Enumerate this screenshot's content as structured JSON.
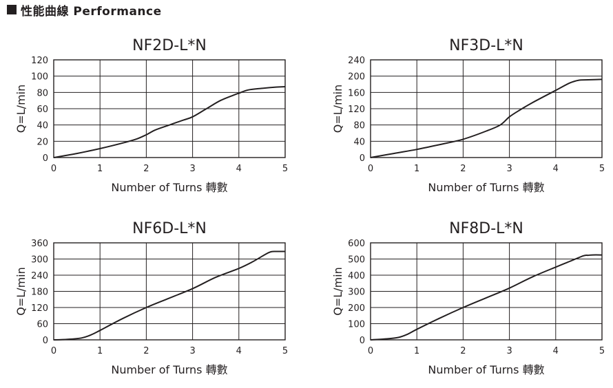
{
  "header": {
    "title": "性能曲線  Performance"
  },
  "chart_data": [
    {
      "type": "line",
      "title": "NF2D-L*N",
      "xlabel": "Number of Turns 轉數",
      "ylabel": "Q=L/min",
      "xlim": [
        0,
        5
      ],
      "ylim": [
        0,
        120
      ],
      "xticks": [
        0,
        1,
        2,
        3,
        4,
        5
      ],
      "yticks": [
        0,
        20,
        40,
        60,
        80,
        100,
        120
      ],
      "grid": true,
      "series": [
        {
          "x": [
            0,
            0.5,
            1,
            1.5,
            1.8,
            2,
            2.2,
            2.5,
            2.8,
            3,
            3.3,
            3.6,
            3.9,
            4,
            4.2,
            4.5,
            4.8,
            5
          ],
          "y": [
            0,
            5,
            11,
            18,
            23,
            28,
            34,
            40,
            46,
            50,
            60,
            70,
            77,
            79,
            83,
            85,
            86.5,
            87
          ]
        }
      ]
    },
    {
      "type": "line",
      "title": "NF3D-L*N",
      "xlabel": "Number of Turns 轉數",
      "ylabel": "Q=L/min",
      "xlim": [
        0,
        5
      ],
      "ylim": [
        0,
        240
      ],
      "xticks": [
        0,
        1,
        2,
        3,
        4,
        5
      ],
      "yticks": [
        0,
        40,
        80,
        120,
        160,
        200,
        240
      ],
      "grid": true,
      "series": [
        {
          "x": [
            0,
            0.5,
            1,
            1.5,
            2,
            2.5,
            2.8,
            3,
            3.2,
            3.5,
            4,
            4.3,
            4.5,
            4.7,
            5
          ],
          "y": [
            0,
            10,
            20,
            32,
            45,
            65,
            80,
            100,
            115,
            135,
            165,
            183,
            190,
            191,
            192
          ]
        }
      ]
    },
    {
      "type": "line",
      "title": "NF6D-L*N",
      "xlabel": "Number of Turns 轉數",
      "ylabel": "Q=L/min",
      "xlim": [
        0,
        5
      ],
      "ylim": [
        0,
        360
      ],
      "xticks": [
        0,
        1,
        2,
        3,
        4,
        5
      ],
      "yticks": [
        0,
        60,
        120,
        180,
        240,
        300,
        360
      ],
      "grid": true,
      "series": [
        {
          "x": [
            0,
            0.3,
            0.6,
            0.8,
            1,
            1.5,
            2,
            2.5,
            3,
            3.5,
            4,
            4.3,
            4.6,
            4.7,
            4.8,
            5
          ],
          "y": [
            0,
            2,
            7,
            18,
            35,
            80,
            120,
            155,
            190,
            232,
            265,
            290,
            320,
            327,
            328,
            328
          ]
        }
      ]
    },
    {
      "type": "line",
      "title": "NF8D-L*N",
      "xlabel": "Number of Turns 轉數",
      "ylabel": "Q=L/min",
      "xlim": [
        0,
        5
      ],
      "ylim": [
        0,
        600
      ],
      "xticks": [
        0,
        1,
        2,
        3,
        4,
        5
      ],
      "yticks": [
        0,
        100,
        200,
        300,
        400,
        500,
        600
      ],
      "grid": true,
      "series": [
        {
          "x": [
            0,
            0.3,
            0.6,
            0.8,
            1,
            1.5,
            2,
            2.5,
            3,
            3.5,
            4,
            4.3,
            4.6,
            4.7,
            4.8,
            5
          ],
          "y": [
            0,
            5,
            15,
            35,
            65,
            135,
            200,
            260,
            320,
            390,
            450,
            485,
            520,
            523,
            525,
            525
          ]
        }
      ]
    }
  ]
}
